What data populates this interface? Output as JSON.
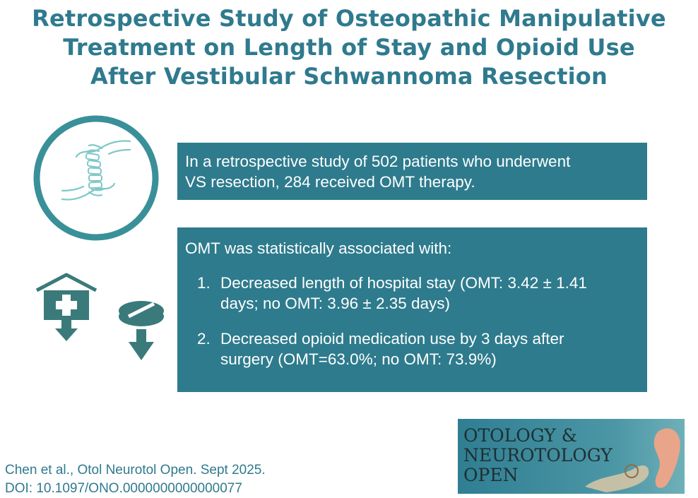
{
  "title": {
    "line1": "Retrospective Study of Osteopathic Manipulative",
    "line2": "Treatment on Length of Stay and Opioid Use",
    "line3": "After Vestibular Schwannoma Resection"
  },
  "summary": {
    "text_line1": "In a retrospective study of 502 patients who underwent",
    "text_line2": "VS resection, 284 received OMT therapy."
  },
  "findings": {
    "intro": "OMT was statistically associated with:",
    "items": [
      {
        "num": "1.",
        "line1": "Decreased length of hospital stay (OMT: 3.42 ± 1.41",
        "line2": "days; no OMT: 3.96 ± 2.35 days)"
      },
      {
        "num": "2.",
        "line1": "Decreased opioid medication use by 3 days after",
        "line2": "surgery (OMT=63.0%; no OMT: 73.9%)"
      }
    ]
  },
  "citation": {
    "line1": "Chen et al., Otol Neurotol Open. Sept 2025.",
    "line2": "DOI: 10.1097/ONO.0000000000000077"
  },
  "journal": {
    "word1": "OTOLOGY &",
    "word2": "NEUROTOLOGY",
    "word3": "OPEN"
  },
  "icons": {
    "hands": "hands-spine-icon",
    "hospital": "hospital-down-icon",
    "pill": "pill-down-icon"
  },
  "colors": {
    "accent": "#2e7b8d",
    "title": "#2f7a8e",
    "icon": "#3a7a7a"
  }
}
